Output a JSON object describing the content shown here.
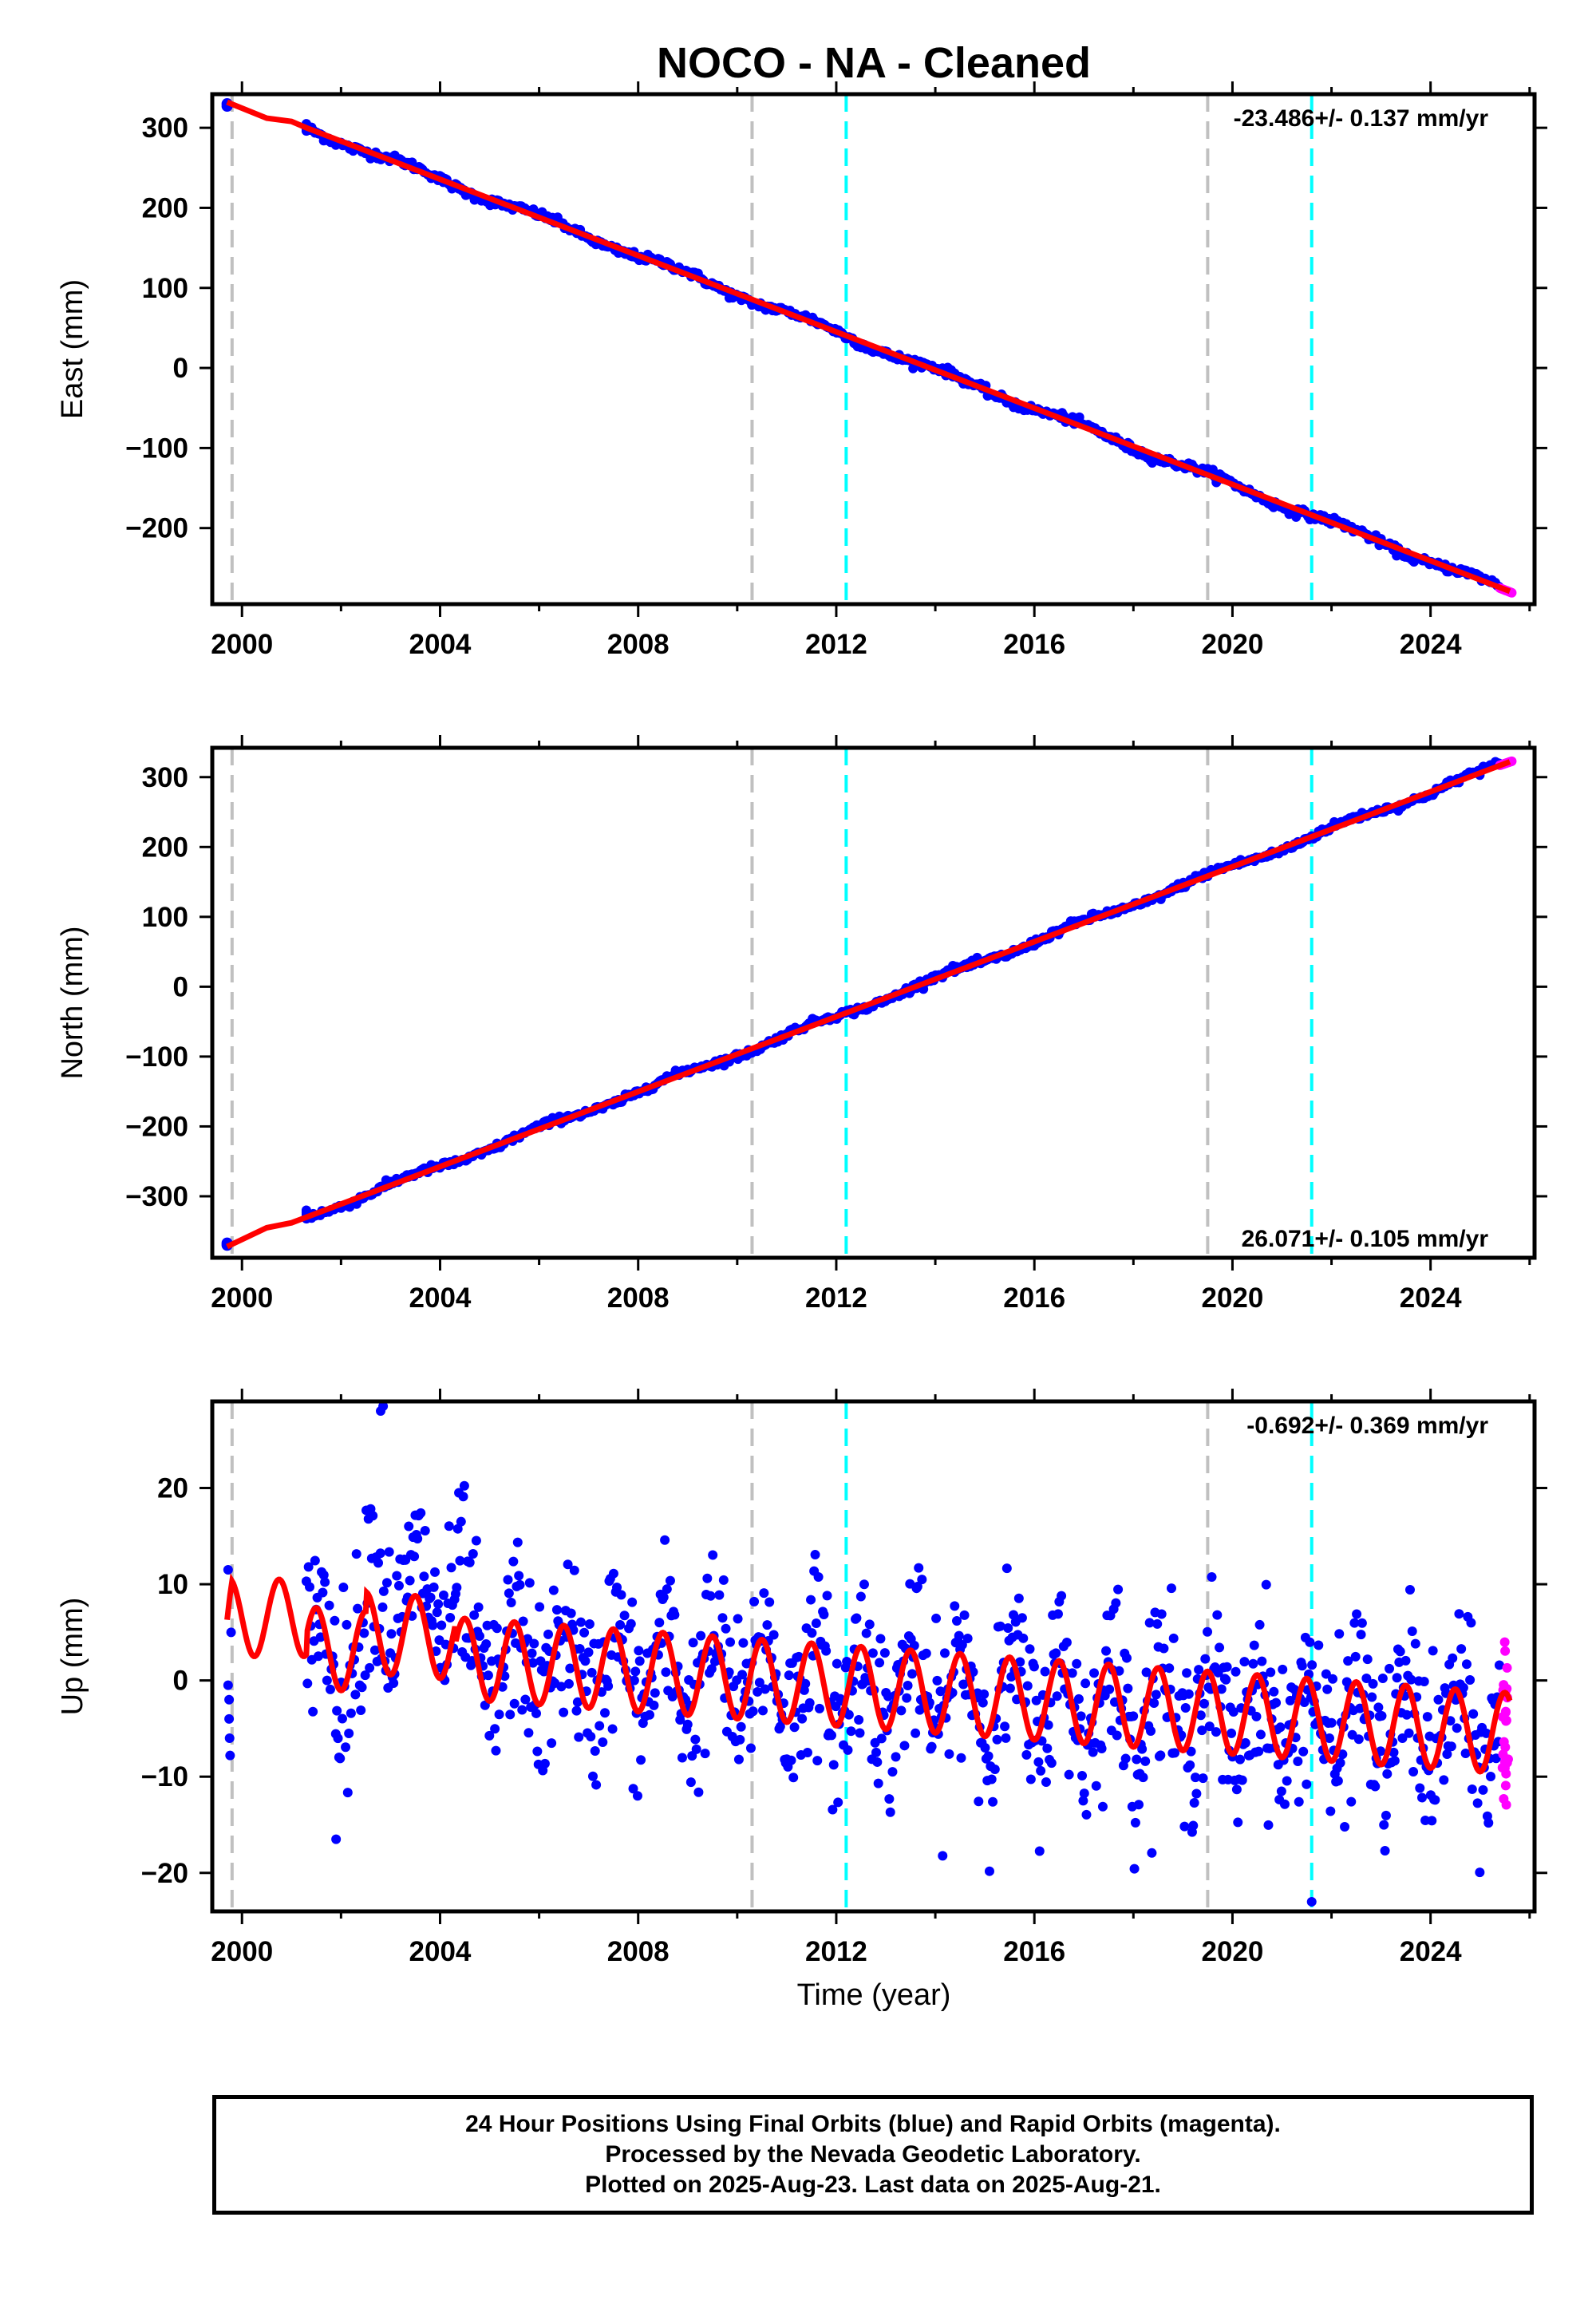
{
  "title": "NOCO  - NA - Cleaned",
  "xlabel": "Time (year)",
  "x_ticks": [
    2000,
    2004,
    2008,
    2012,
    2016,
    2020,
    2024
  ],
  "equipment_change_years": [
    1999.8,
    2010.3,
    2019.5
  ],
  "earthquake_years": [
    2012.2,
    2021.6
  ],
  "colors": {
    "final_orbits": "#0000ff",
    "rapid_orbits": "#ff00ff",
    "model": "#ff0000",
    "equipment_line": "#c0c0c0",
    "earthquake_line": "#00ffff"
  },
  "chart_data": [
    {
      "type": "scatter",
      "component": "east",
      "ylabel": "East (mm)",
      "rate_text": "-23.486+/- 0.137 mm/yr",
      "xlim": [
        1999.4,
        2026.1
      ],
      "ylim": [
        -295,
        342
      ],
      "y_ticks": [
        300,
        200,
        100,
        0,
        -100,
        -200
      ],
      "series": [
        {
          "name": "Final Orbits",
          "start": [
            1999.7,
            330
          ],
          "gap_until": 2001.3,
          "end": [
            2025.4,
            -275
          ]
        },
        {
          "name": "Rapid Orbits",
          "start": [
            2025.4,
            -275
          ],
          "end": [
            2025.65,
            -281
          ]
        }
      ],
      "model_line": {
        "x": [
          1999.7,
          2000.5,
          2001.0,
          2001.3,
          2025.6
        ],
        "y": [
          332,
          312,
          308,
          300,
          -279
        ]
      }
    },
    {
      "type": "scatter",
      "component": "north",
      "ylabel": "North (mm)",
      "rate_text": "26.071+/- 0.105 mm/yr",
      "xlim": [
        1999.4,
        2026.1
      ],
      "ylim": [
        -388,
        342
      ],
      "y_ticks": [
        300,
        200,
        100,
        0,
        -100,
        -200,
        -300
      ],
      "series": [
        {
          "name": "Final Orbits",
          "start": [
            1999.7,
            -370
          ],
          "gap_until": 2001.3,
          "end": [
            2025.4,
            317
          ]
        },
        {
          "name": "Rapid Orbits",
          "start": [
            2025.4,
            317
          ],
          "end": [
            2025.65,
            323
          ]
        }
      ],
      "model_line": {
        "x": [
          1999.7,
          2000.5,
          2001.0,
          2001.3,
          2025.6
        ],
        "y": [
          -372,
          -345,
          -338,
          -330,
          322
        ]
      }
    },
    {
      "type": "scatter",
      "component": "up",
      "ylabel": "Up (mm)",
      "rate_text": "-0.692+/- 0.369 mm/yr",
      "xlim": [
        1999.4,
        2026.1
      ],
      "ylim": [
        -24,
        29
      ],
      "y_ticks": [
        20,
        10,
        0,
        -10,
        -20
      ],
      "series": [
        {
          "name": "Final Orbits",
          "scatter_sd_mm": 4.5,
          "annual_amplitude_mm": 4
        },
        {
          "name": "Rapid Orbits",
          "x_range": [
            2025.4,
            2025.65
          ],
          "y_range": [
            -13,
            4
          ]
        }
      ],
      "model_line": {
        "mean_start_mm": 4,
        "mean_end_mm": -5.5,
        "annual_amplitude_mm": 4.2
      }
    }
  ],
  "caption": {
    "line1": "24 Hour Positions Using Final Orbits (blue) and Rapid Orbits (magenta).",
    "line2": "Processed by the Nevada Geodetic Laboratory.",
    "line3": "Plotted on 2025-Aug-23. Last data on 2025-Aug-21."
  }
}
